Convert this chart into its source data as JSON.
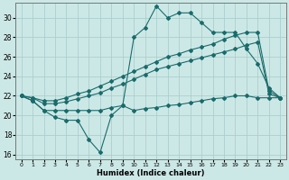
{
  "xlabel": "Humidex (Indice chaleur)",
  "background_color": "#cce8e6",
  "grid_color": "#aacfcd",
  "line_color": "#1a6b6b",
  "xlim": [
    -0.5,
    23.5
  ],
  "ylim": [
    15.5,
    31.5
  ],
  "xticks": [
    0,
    1,
    2,
    3,
    4,
    5,
    6,
    7,
    8,
    9,
    10,
    11,
    12,
    13,
    14,
    15,
    16,
    17,
    18,
    19,
    20,
    21,
    22,
    23
  ],
  "yticks": [
    16,
    18,
    20,
    22,
    24,
    26,
    28,
    30
  ],
  "series": {
    "line1": [
      22.0,
      21.5,
      20.5,
      19.8,
      19.5,
      19.5,
      17.5,
      16.2,
      20.0,
      21.0,
      28.0,
      29.0,
      31.2,
      30.0,
      30.5,
      30.5,
      29.5,
      28.5,
      28.5,
      28.5,
      26.8,
      25.3,
      22.8,
      21.8
    ],
    "line2": [
      22.0,
      21.8,
      21.5,
      21.5,
      21.8,
      22.2,
      22.5,
      23.0,
      23.5,
      24.0,
      24.5,
      25.0,
      25.5,
      26.0,
      26.3,
      26.7,
      27.0,
      27.3,
      27.8,
      28.2,
      28.5,
      28.5,
      22.5,
      21.8
    ],
    "line3": [
      22.0,
      21.8,
      21.2,
      21.2,
      21.4,
      21.7,
      22.0,
      22.3,
      22.8,
      23.2,
      23.7,
      24.2,
      24.7,
      25.0,
      25.3,
      25.6,
      25.9,
      26.2,
      26.5,
      26.8,
      27.2,
      27.5,
      22.2,
      21.8
    ],
    "line4": [
      22.0,
      21.5,
      20.5,
      20.5,
      20.5,
      20.5,
      20.5,
      20.5,
      20.8,
      21.0,
      20.5,
      20.7,
      20.8,
      21.0,
      21.1,
      21.3,
      21.5,
      21.7,
      21.8,
      22.0,
      22.0,
      21.8,
      21.8,
      21.8
    ]
  }
}
